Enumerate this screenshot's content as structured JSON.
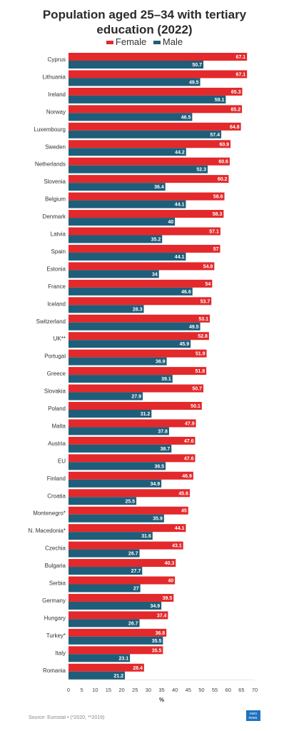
{
  "title_line1": "Population aged 25–34 with tertiary",
  "title_line2": "education (2022)",
  "legend": {
    "female": "Female",
    "male": "Male"
  },
  "colors": {
    "female": "#e3292b",
    "male": "#1f5e7a"
  },
  "source": "Source: Eurostat • (*2020, **2019)",
  "logo": {
    "line1": "euro",
    "line2": "news."
  },
  "chart_data": {
    "type": "bar",
    "orientation": "horizontal",
    "xlabel": "%",
    "xlim": [
      0,
      70
    ],
    "xticks": [
      0,
      5,
      10,
      15,
      20,
      25,
      30,
      35,
      40,
      45,
      50,
      55,
      60,
      65,
      70
    ],
    "grid": false,
    "legend_position": "top-center",
    "categories": [
      "Cyprus",
      "Lithuania",
      "Ireland",
      "Norway",
      "Luxembourg",
      "Sweden",
      "Netherlands",
      "Slovenia",
      "Belgium",
      "Denmark",
      "Latvia",
      "Spain",
      "Estonia",
      "France",
      "Iceland",
      "Switzerland",
      "UK**",
      "Portugal",
      "Greece",
      "Slovakia",
      "Poland",
      "Malta",
      "Austria",
      "EU",
      "Finland",
      "Croatia",
      "Montenegro*",
      "N. Macedonia*",
      "Czechia",
      "Bulgaria",
      "Serbia",
      "Germany",
      "Hungary",
      "Turkey*",
      "Italy",
      "Romania"
    ],
    "series": [
      {
        "name": "Female",
        "values": [
          67.1,
          67.1,
          65.3,
          65.2,
          64.8,
          60.9,
          60.6,
          60.2,
          58.6,
          58.3,
          57.1,
          57,
          54.8,
          54,
          53.7,
          53.1,
          52.8,
          51.9,
          51.8,
          50.7,
          50.1,
          47.9,
          47.6,
          47.6,
          46.9,
          45.6,
          45,
          44.1,
          43.1,
          40.3,
          40,
          39.5,
          37.4,
          36.8,
          35.5,
          28.4
        ]
      },
      {
        "name": "Male",
        "values": [
          50.7,
          49.5,
          59.1,
          46.5,
          57.4,
          44.2,
          52.3,
          36.4,
          44.1,
          40,
          35.2,
          44.1,
          34,
          46.6,
          28.3,
          49.5,
          45.9,
          36.9,
          39.1,
          27.9,
          31.2,
          37.8,
          38.7,
          36.5,
          34.9,
          25.5,
          35.9,
          31.6,
          26.7,
          27.7,
          27,
          34.9,
          26.7,
          35.5,
          23.1,
          21.2
        ]
      }
    ]
  }
}
